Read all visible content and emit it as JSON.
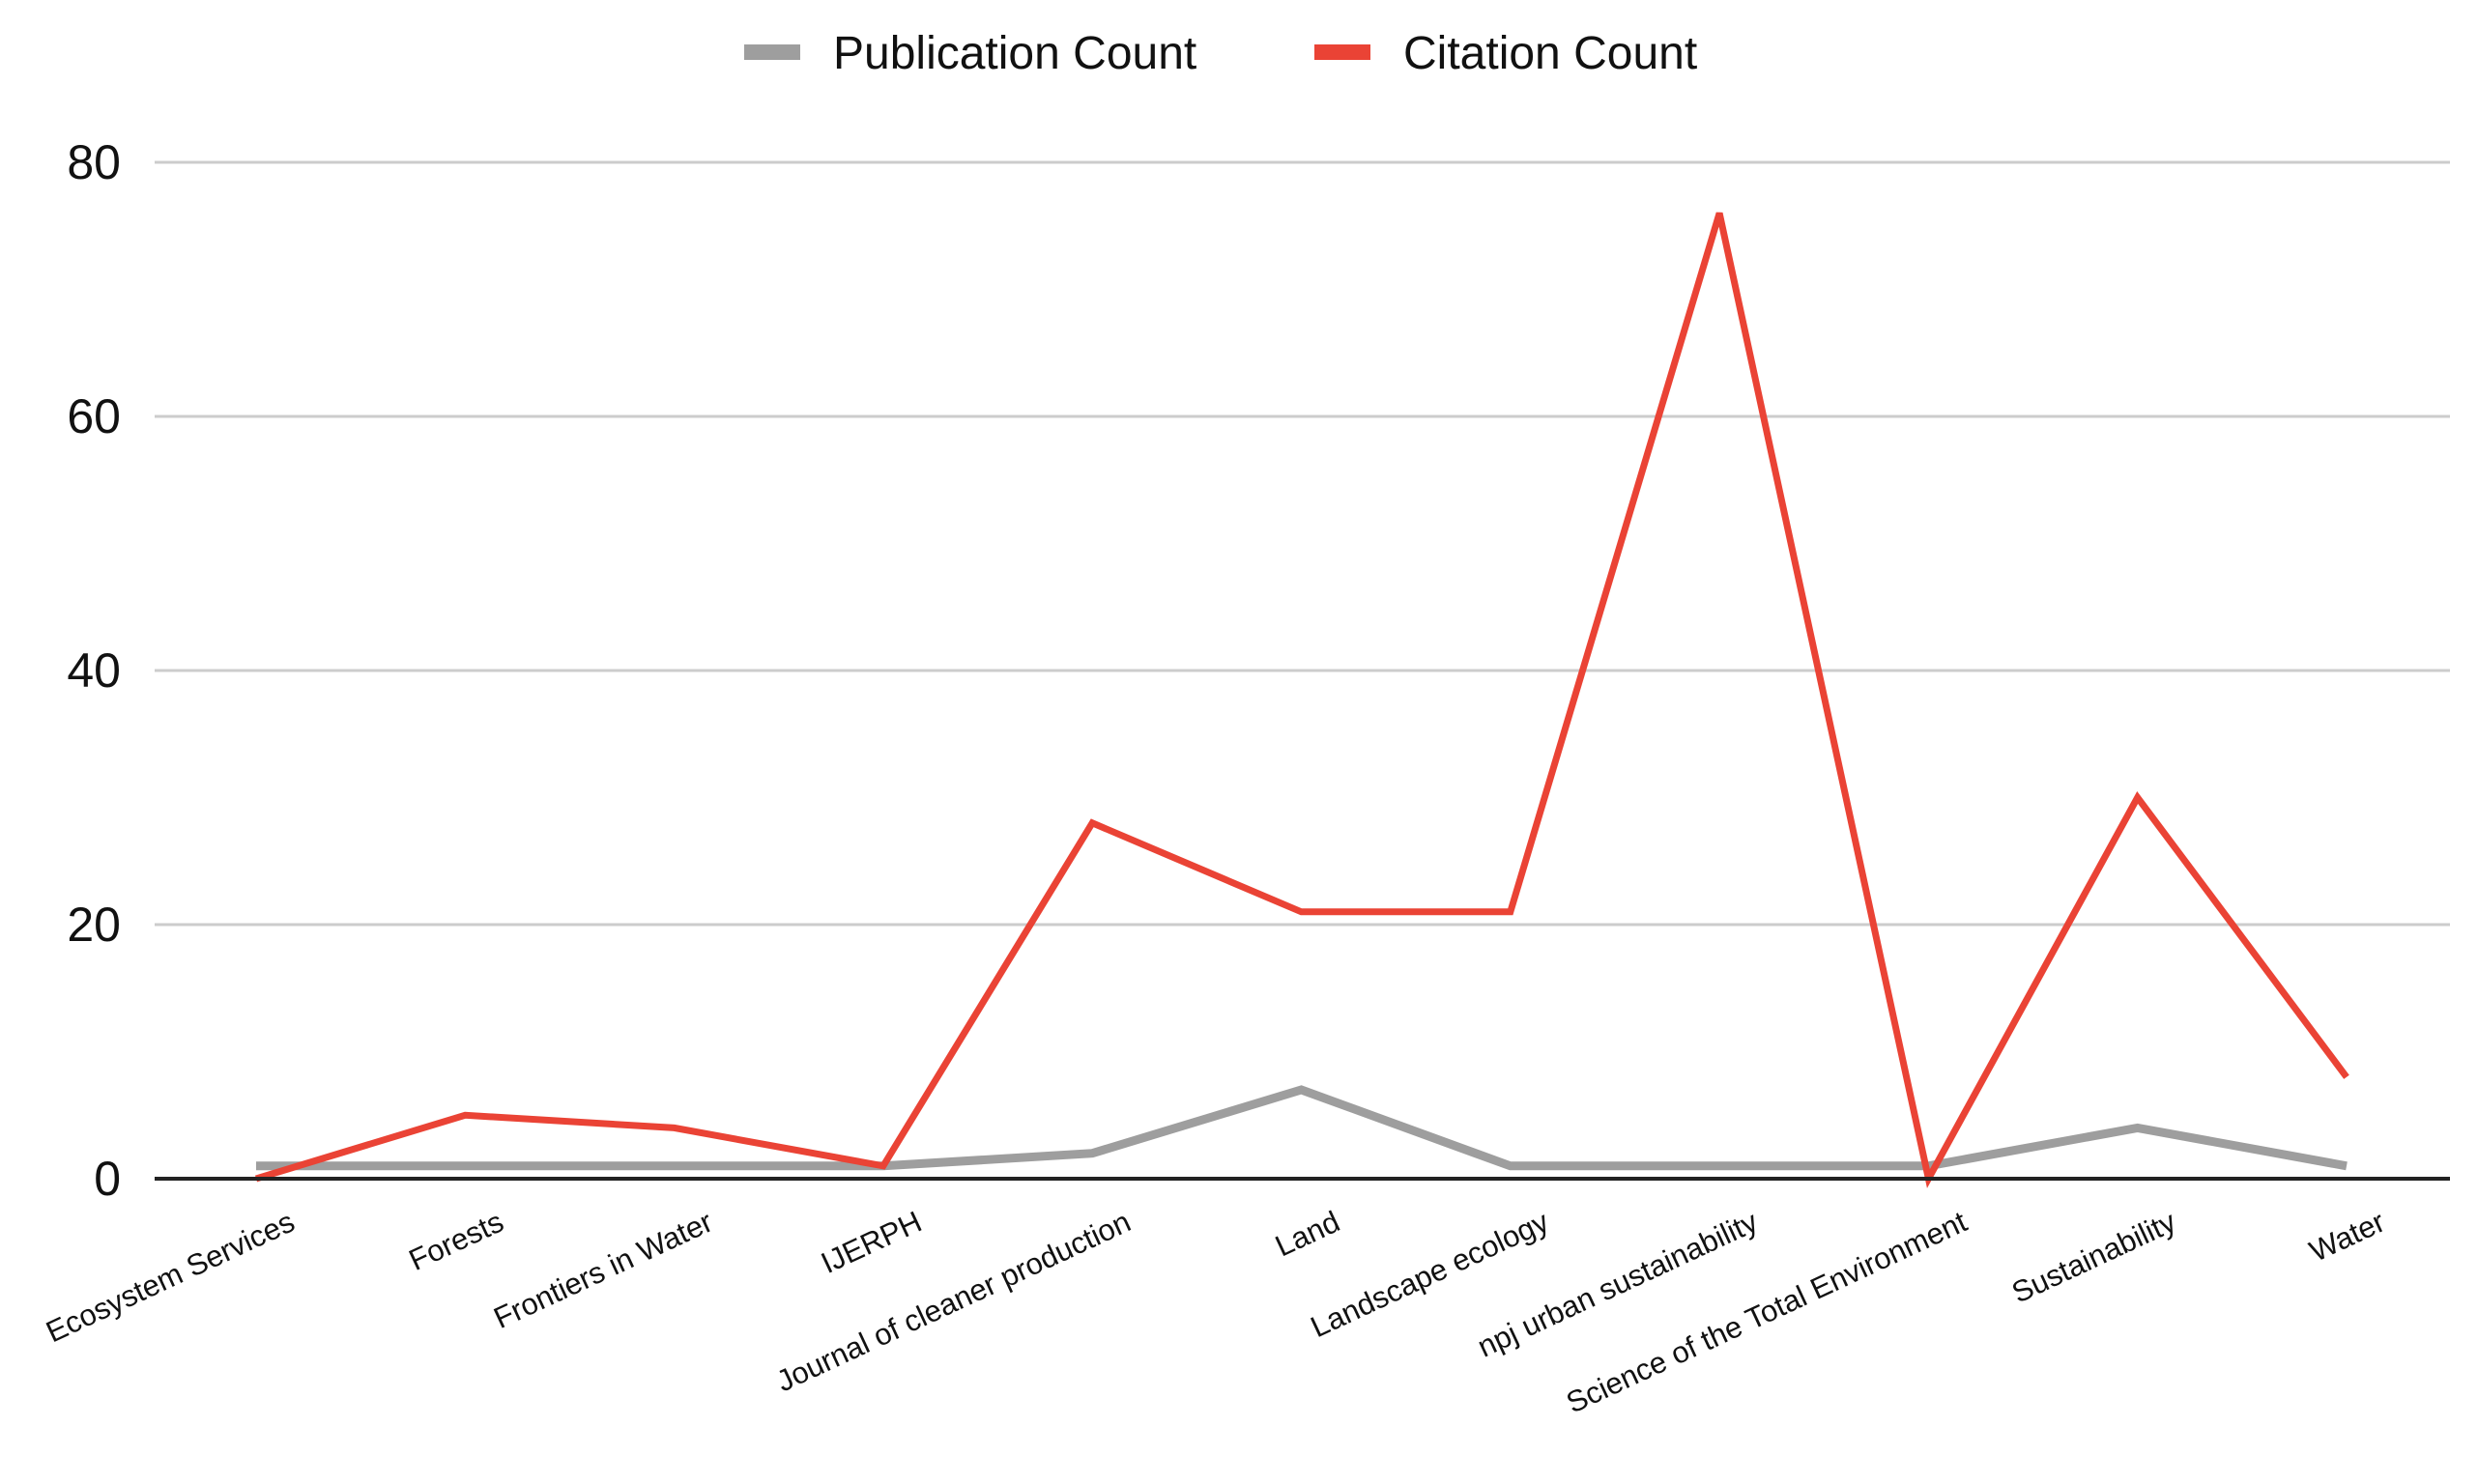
{
  "chart_data": {
    "type": "line",
    "categories": [
      "Ecosystem Services",
      "Forests",
      "Frontiers in Water",
      "IJERPH",
      "Journal of cleaner production",
      "Land",
      "Landscape ecology",
      "npj urban sustainability",
      "Science of the Total Environment",
      "Sustainability",
      "Water"
    ],
    "series": [
      {
        "name": "Publication Count",
        "color": "#9e9e9e",
        "values": [
          1,
          1,
          1,
          1,
          2,
          7,
          1,
          1,
          1,
          4,
          1
        ]
      },
      {
        "name": "Citation Count",
        "color": "#ea4335",
        "values": [
          0,
          5,
          4,
          1,
          28,
          21,
          21,
          76,
          0,
          30,
          8
        ]
      }
    ],
    "ylim": [
      0,
      80
    ],
    "yticks": [
      0,
      20,
      40,
      60,
      80
    ],
    "grid": true,
    "legend": "top-center",
    "title": "",
    "xlabel": "",
    "ylabel": ""
  }
}
